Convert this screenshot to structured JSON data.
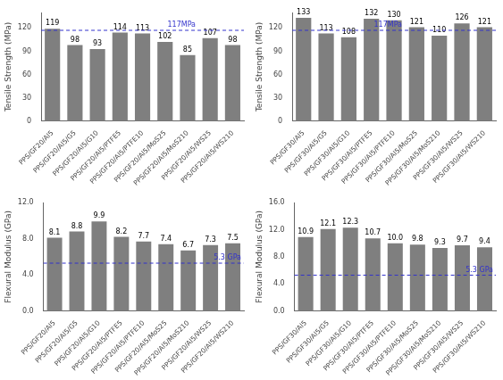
{
  "chart_data": [
    {
      "type": "bar",
      "categories": [
        "PPS/GF20/Al5",
        "PPS/GF20/Al5/G5",
        "PPS/GF20/Al5/G10",
        "PPS/GF20/Al5/PTFE5",
        "PPS/GF20/Al5/PTFE10",
        "PPS/GF20/Al5/MoS25",
        "PPS/GF20/Al5/MoS210",
        "PPS/GF20/Al5/WS25",
        "PPS/GF20/Al5/WS210"
      ],
      "values": [
        119,
        98,
        93,
        114,
        113,
        102,
        85,
        107,
        98
      ],
      "color": "#7f7f7f",
      "y_label": "Tensile Strength (MPa)",
      "ylim": [
        0,
        140
      ],
      "yticks": [
        0,
        30,
        60,
        90,
        120
      ],
      "grid": false,
      "data_labels": true,
      "annotations": [
        {
          "type": "hline",
          "y": 117,
          "text": "117MPa",
          "color": "#3333CC",
          "line_style": "dashed"
        }
      ]
    },
    {
      "type": "bar",
      "categories": [
        "PPS/GF30/Al5",
        "PPS/GF30/Al5/G5",
        "PPS/GF30/Al5/G10",
        "PPS/GF30/Al5/PTFE5",
        "PPS/GF30/Al5/PTFE10",
        "PPS/GF30/Al5/MoS25",
        "PPS/GF30/Al5/MoS210",
        "PPS/GF30/Al5/WS25",
        "PPS/GF30/Al5/WS210"
      ],
      "values": [
        133,
        113,
        108,
        132,
        130,
        121,
        110,
        126,
        121
      ],
      "color": "#7f7f7f",
      "y_label": "Tensile Strength (MPa)",
      "ylim": [
        0,
        140
      ],
      "yticks": [
        0,
        30,
        60,
        90,
        120
      ],
      "grid": false,
      "data_labels": true,
      "annotations": [
        {
          "type": "hline",
          "y": 117,
          "text": "117MPa",
          "color": "#3333CC",
          "line_style": "dashed"
        }
      ]
    },
    {
      "type": "bar",
      "categories": [
        "PPS/GF20/Al5",
        "PPS/GF20/Al5/G5",
        "PPS/GF20/Al5/G10",
        "PPS/GF20/Al5/PTFE5",
        "PPS/GF20/Al5/PTFE10",
        "PPS/GF20/Al5/MoS25",
        "PPS/GF20/Al5/MoS210",
        "PPS/GF20/Al5/WS25",
        "PPS/GF20/Al5/WS210"
      ],
      "values": [
        8.1,
        8.8,
        9.9,
        8.2,
        7.7,
        7.4,
        6.7,
        7.3,
        7.5
      ],
      "value_labels": [
        "8.1",
        "8.8",
        "9.9",
        "8.2",
        "7.7",
        "7.4",
        "6.7",
        "7.3",
        "7.5"
      ],
      "color": "#7f7f7f",
      "y_label": "Flexural Modulus (GPa)",
      "ylim": [
        0,
        12
      ],
      "yticks": [
        {
          "value": 0,
          "label": "0.0"
        },
        {
          "value": 4,
          "label": "4.0"
        },
        {
          "value": 8,
          "label": "8.0"
        },
        {
          "value": 12,
          "label": "12.0"
        }
      ],
      "grid": false,
      "data_labels": true,
      "annotations": [
        {
          "type": "hline",
          "y": 5.3,
          "text": "5.3 GPa",
          "color": "#3333CC",
          "line_style": "dashed"
        }
      ]
    },
    {
      "type": "bar",
      "categories": [
        "PPS/GF30/Al5",
        "PPS/GF30/Al5/G5",
        "PPS/GF30/Al5/G10",
        "PPS/GF30/Al5/PTFE5",
        "PPS/GF30/Al5/PTFE10",
        "PPS/GF30/Al5/MoS25",
        "PPS/GF30/Al5/MoS210",
        "PPS/GF30/Al5/WS25",
        "PPS/GF30/Al5/WS210"
      ],
      "values": [
        10.9,
        12.1,
        12.3,
        10.7,
        10.0,
        9.8,
        9.3,
        9.7,
        9.4
      ],
      "value_labels": [
        "10.9",
        "12.1",
        "12.3",
        "10.7",
        "10.0",
        "9.8",
        "9.3",
        "9.7",
        "9.4"
      ],
      "color": "#7f7f7f",
      "y_label": "Flexural Modulus (GPa)",
      "ylim": [
        0,
        16
      ],
      "yticks": [
        {
          "value": 0,
          "label": "0.0"
        },
        {
          "value": 4,
          "label": "4.0"
        },
        {
          "value": 8,
          "label": "8.0"
        },
        {
          "value": 12,
          "label": "12.0"
        },
        {
          "value": 16,
          "label": "16.0"
        }
      ],
      "grid": false,
      "data_labels": true,
      "annotations": [
        {
          "type": "hline",
          "y": 5.3,
          "text": "5.3 GPa",
          "color": "#3333CC",
          "line_style": "dashed"
        }
      ]
    }
  ]
}
